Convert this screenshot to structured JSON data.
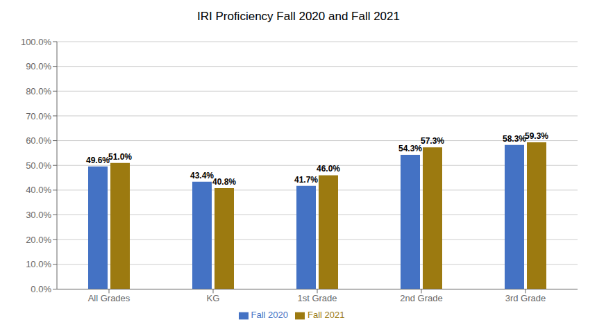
{
  "chart_data": {
    "type": "bar",
    "title": "IRI Proficiency Fall 2020 and Fall 2021",
    "categories": [
      "All Grades",
      "KG",
      "1st Grade",
      "2nd Grade",
      "3rd Grade"
    ],
    "series": [
      {
        "name": "Fall 2020",
        "color": "#4472C4",
        "values": [
          49.6,
          43.4,
          41.7,
          54.3,
          58.3
        ],
        "value_labels": [
          "49.6%",
          "43.4%",
          "41.7%",
          "54.3%",
          "58.3%"
        ]
      },
      {
        "name": "Fall 2021",
        "color": "#9C7A10",
        "values": [
          51.0,
          40.8,
          46.0,
          57.3,
          59.3
        ],
        "value_labels": [
          "51.0%",
          "40.8%",
          "46.0%",
          "57.3%",
          "59.3%"
        ]
      }
    ],
    "ylim": [
      0,
      100
    ],
    "yticks": [
      {
        "value": 0,
        "label": "0.0%"
      },
      {
        "value": 10,
        "label": "10.0%"
      },
      {
        "value": 20,
        "label": "20.0%"
      },
      {
        "value": 30,
        "label": "30.0%"
      },
      {
        "value": 40,
        "label": "40.0%"
      },
      {
        "value": 50,
        "label": "50.0%"
      },
      {
        "value": 60,
        "label": "60.0%"
      },
      {
        "value": 70,
        "label": "70.0%"
      },
      {
        "value": 80,
        "label": "80.0%"
      },
      {
        "value": 90,
        "label": "90.0%"
      },
      {
        "value": 100,
        "label": "100.0%"
      }
    ],
    "grid": true,
    "legend": "bottom",
    "data_labels": true
  }
}
